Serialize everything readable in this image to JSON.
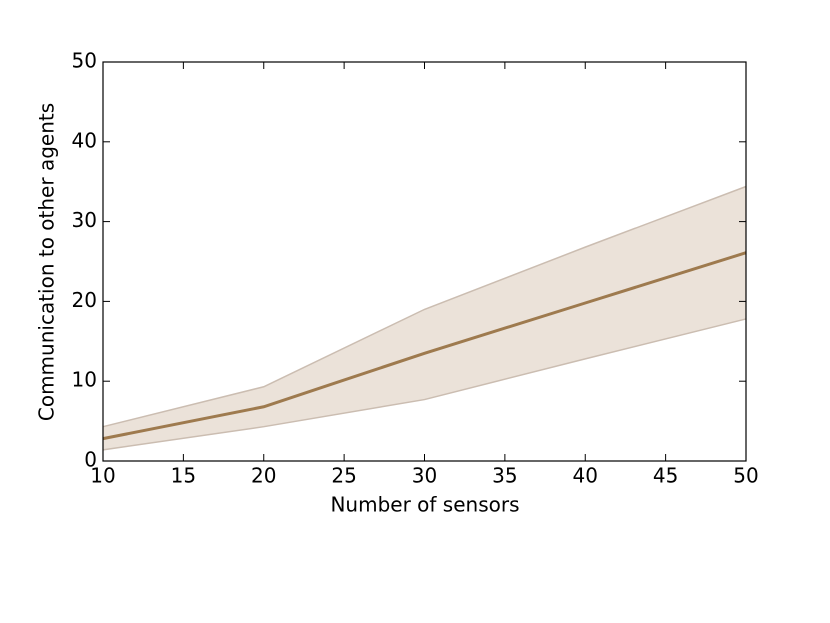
{
  "chart_data": {
    "type": "line",
    "xlabel": "Number of sensors",
    "ylabel": "Communication to other agents",
    "x": [
      10,
      20,
      30,
      40,
      50
    ],
    "series": [
      {
        "color": "#9e7a4e",
        "band_color": "#ebe2d9",
        "band_edge_color": "#cbbdb1",
        "values": [
          2.8,
          6.8,
          13.5,
          19.8,
          26.1
        ],
        "band_upper": [
          4.3,
          9.3,
          19.0,
          26.8,
          34.4
        ],
        "band_lower": [
          1.4,
          4.3,
          7.7,
          12.8,
          17.8
        ]
      }
    ],
    "xlim": [
      10,
      50
    ],
    "xticks": [
      10,
      15,
      20,
      25,
      30,
      35,
      40,
      45,
      50
    ],
    "ylim": [
      0,
      50
    ],
    "yticks": [
      0,
      10,
      20,
      30,
      40,
      50
    ]
  }
}
